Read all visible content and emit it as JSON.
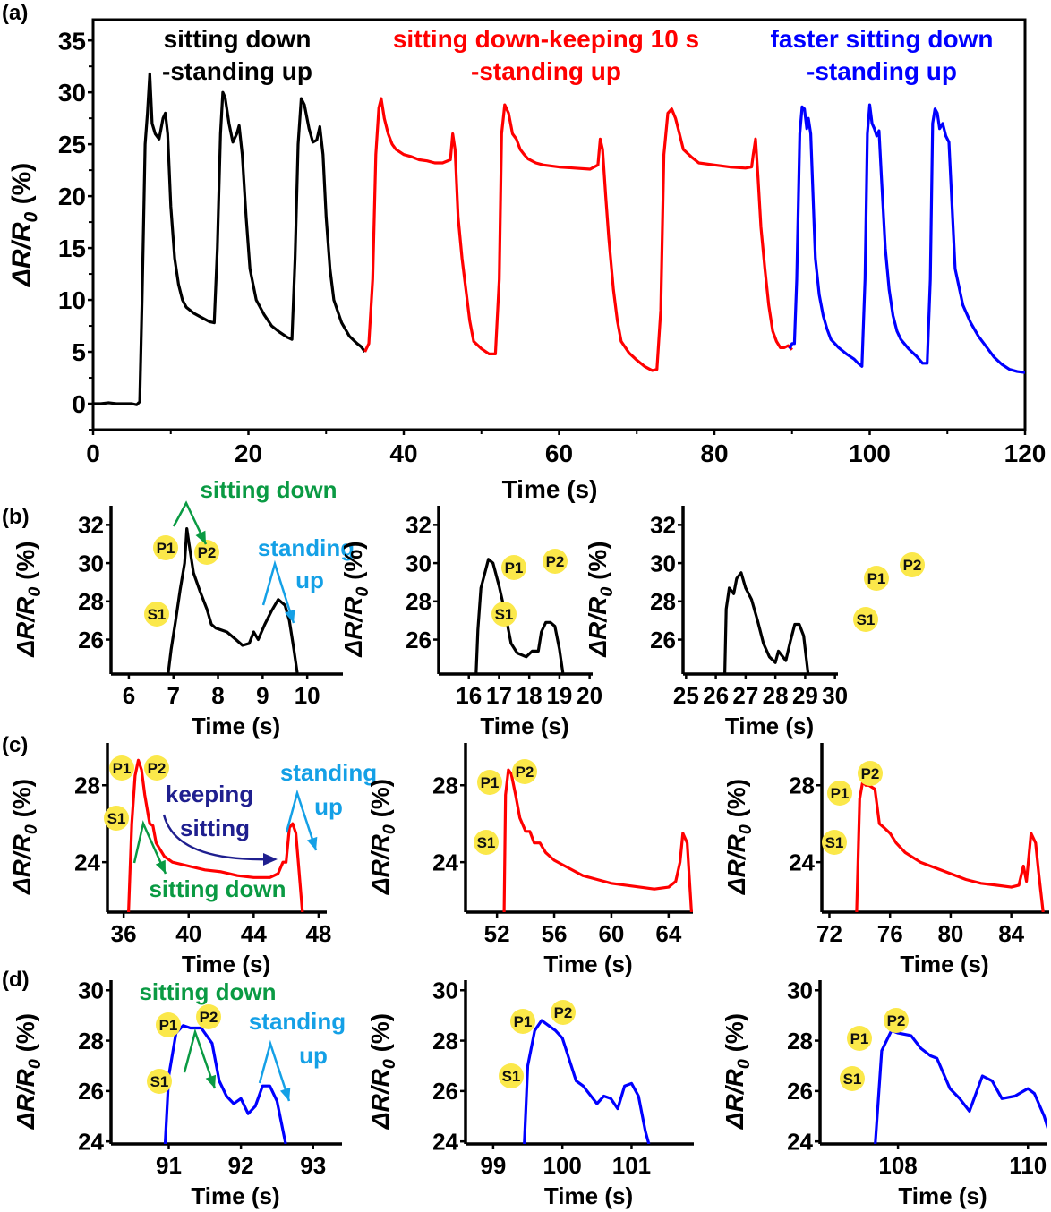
{
  "figure": {
    "panel_labels": [
      "(a)",
      "(b)",
      "(c)",
      "(d)"
    ],
    "colors": {
      "black": "#000000",
      "red": "#ff0000",
      "blue": "#0000ff",
      "green": "#0a9a43",
      "light_blue": "#14a0e6",
      "navy": "#1f1f8f",
      "marker_yellow": "#fbe84a"
    }
  },
  "chart_data": [
    {
      "id": "a",
      "type": "line",
      "title": "",
      "xlabel": "Time (s)",
      "ylabel": "ΔR/R0 (%)",
      "xlim": [
        0,
        120
      ],
      "ylim": [
        -2.5,
        37
      ],
      "xticks": [
        0,
        20,
        40,
        60,
        80,
        100,
        120
      ],
      "yticks": [
        0,
        5,
        10,
        15,
        20,
        25,
        30,
        35
      ],
      "annotations": [
        {
          "text": [
            "sitting down",
            "-standing up"
          ],
          "color": "black"
        },
        {
          "text": [
            "sitting down-keeping 10 s",
            "-standing up"
          ],
          "color": "red"
        },
        {
          "text": [
            "faster sitting down",
            "-standing up"
          ],
          "color": "blue"
        }
      ],
      "series": [
        {
          "name": "sitting down-standing up",
          "color": "black",
          "x": [
            0,
            1,
            2,
            3,
            4,
            5,
            5.6,
            6,
            6.3,
            6.7,
            7,
            7.3,
            7.6,
            8,
            8.5,
            9,
            9.3,
            9.6,
            10,
            10.5,
            11,
            11.5,
            12,
            13,
            14,
            15,
            15.6,
            16,
            16.4,
            16.7,
            17,
            17.5,
            18,
            18.5,
            18.8,
            19.2,
            19.7,
            20.2,
            21,
            22,
            23,
            24,
            25,
            25.6,
            26,
            26.4,
            26.8,
            27.2,
            27.8,
            28.3,
            28.8,
            29.2,
            29.6,
            30,
            30.5,
            31,
            32,
            33,
            34,
            34.5,
            35
          ],
          "y": [
            0,
            0,
            0.1,
            0,
            0,
            0,
            -0.1,
            0.2,
            10,
            25,
            28,
            31.8,
            27,
            26,
            25.5,
            27.5,
            28,
            26,
            19,
            14,
            11.5,
            10,
            9.3,
            8.7,
            8.3,
            7.9,
            7.8,
            15,
            26,
            30,
            29.5,
            27,
            25.2,
            26,
            26.8,
            24,
            18,
            13,
            10,
            8.6,
            7.5,
            6.9,
            6.4,
            6.2,
            14,
            25,
            29.4,
            28.8,
            26.5,
            25.2,
            25.4,
            26.7,
            24,
            18,
            13,
            10,
            7.8,
            6.5,
            5.8,
            5.5,
            5
          ]
        },
        {
          "name": "sitting down-keeping 10 s-standing up",
          "color": "red",
          "x": [
            35,
            35.5,
            36,
            36.4,
            36.8,
            37.1,
            37.5,
            38,
            38.5,
            39,
            40,
            41,
            42,
            43,
            44,
            45,
            46,
            46.3,
            46.6,
            47,
            47.5,
            48,
            48.5,
            49,
            50,
            51,
            51.8,
            52.3,
            52.6,
            53,
            53.5,
            54,
            54.5,
            55,
            55.5,
            56,
            57,
            58,
            60,
            62,
            64,
            65,
            65.3,
            65.6,
            66,
            66.4,
            67,
            67.5,
            68,
            69,
            70,
            71,
            72,
            72.6,
            73.1,
            73.5,
            74,
            74.5,
            75,
            75.5,
            76,
            77,
            78,
            80,
            82,
            84,
            84.8,
            85,
            85.3,
            85.6,
            86,
            86.5,
            87,
            87.5,
            88,
            88.5,
            89,
            89.5,
            90
          ],
          "y": [
            5,
            5.8,
            12,
            24,
            28.5,
            29.4,
            27.5,
            26,
            25,
            24.5,
            24,
            23.8,
            23.5,
            23.4,
            23.2,
            23.2,
            23.5,
            26,
            24.5,
            18,
            14,
            11,
            8,
            6,
            5.3,
            4.8,
            4.8,
            12,
            26,
            28.8,
            28,
            26,
            25.5,
            24.5,
            24,
            23.6,
            23.2,
            23,
            22.8,
            22.7,
            22.6,
            23,
            25.5,
            24.5,
            20,
            16,
            11,
            8,
            6,
            4.9,
            4.2,
            3.6,
            3.2,
            3.3,
            9,
            24,
            28,
            28.4,
            27.5,
            26,
            24.5,
            23.8,
            23.2,
            23,
            22.8,
            22.7,
            22.8,
            24,
            25.5,
            22,
            17,
            13,
            9.5,
            7,
            6,
            5.4,
            5.4,
            5.6,
            5.2
          ]
        },
        {
          "name": "faster sitting down-standing up",
          "color": "blue",
          "x": [
            89.7,
            90,
            90.3,
            90.6,
            91,
            91.3,
            91.6,
            91.9,
            92.1,
            92.4,
            92.7,
            93,
            93.5,
            94,
            94.5,
            95,
            96,
            97,
            98,
            98.5,
            99,
            99.4,
            99.7,
            100,
            100.3,
            100.6,
            100.9,
            101.2,
            101.5,
            102,
            102.5,
            103,
            103.5,
            104,
            105,
            106,
            106.8,
            107.4,
            107.8,
            108.1,
            108.4,
            108.7,
            109,
            109.4,
            109.8,
            110.2,
            110.6,
            111,
            112,
            113,
            114,
            115,
            116,
            117,
            118,
            119,
            120
          ],
          "y": [
            5.3,
            5.8,
            5.8,
            12,
            26,
            28.6,
            28.4,
            26.5,
            27.5,
            26,
            20,
            14,
            10.5,
            8.5,
            7.2,
            6.2,
            5.4,
            4.8,
            4.3,
            3.9,
            3.6,
            12,
            26,
            28.8,
            27,
            26.5,
            25.8,
            26.3,
            22,
            15,
            11,
            8.5,
            7,
            6.2,
            5.3,
            4.6,
            3.9,
            3.9,
            12,
            27,
            28.4,
            28,
            26.5,
            27,
            25.8,
            25.2,
            19,
            13,
            9.5,
            7.8,
            6.5,
            5.5,
            4.5,
            3.8,
            3.3,
            3.1,
            3
          ]
        }
      ]
    },
    {
      "id": "b1",
      "type": "line",
      "color": "black",
      "xlabel": "Time (s)",
      "ylabel": "ΔR/R0 (%)",
      "xlim": [
        5.6,
        10.8
      ],
      "ylim": [
        24.2,
        33
      ],
      "xticks": [
        6,
        7,
        8,
        9,
        10
      ],
      "yticks": [
        26,
        28,
        30,
        32
      ],
      "x": [
        6.88,
        6.95,
        7.05,
        7.15,
        7.25,
        7.3,
        7.35,
        7.45,
        7.6,
        7.75,
        7.85,
        7.95,
        8.2,
        8.4,
        8.55,
        8.7,
        8.8,
        8.9,
        9.05,
        9.2,
        9.35,
        9.5,
        9.6,
        9.7,
        9.78
      ],
      "y": [
        24.2,
        25.5,
        27,
        28.6,
        30,
        31.8,
        31,
        29.5,
        28.5,
        27.6,
        26.8,
        26.6,
        26.4,
        26,
        25.7,
        25.8,
        26.4,
        26,
        26.8,
        27.5,
        28.1,
        27.8,
        27,
        25.5,
        24.2
      ],
      "markers": [
        "S1",
        "P1",
        "P2"
      ],
      "annotations": [
        {
          "text": "sitting down",
          "color": "green"
        },
        {
          "text": [
            "standing",
            "up"
          ],
          "color": "light_blue"
        }
      ]
    },
    {
      "id": "b2",
      "type": "line",
      "color": "black",
      "xlabel": "Time (s)",
      "ylabel": "ΔR/R0 (%)",
      "xlim": [
        15,
        20.1
      ],
      "ylim": [
        24.2,
        33
      ],
      "xticks": [
        16,
        17,
        18,
        19,
        20
      ],
      "yticks": [
        26,
        28,
        30,
        32
      ],
      "x": [
        16.24,
        16.3,
        16.4,
        16.5,
        16.65,
        16.8,
        17,
        17.2,
        17.4,
        17.6,
        17.9,
        18.1,
        18.3,
        18.4,
        18.55,
        18.7,
        18.85,
        19,
        19.12
      ],
      "y": [
        24.2,
        26.5,
        28.7,
        29.3,
        30.2,
        30,
        28.8,
        27.4,
        25.8,
        25.3,
        25.1,
        25.4,
        25.4,
        26.4,
        26.9,
        26.9,
        26.7,
        25.5,
        24.2
      ],
      "markers": [
        "S1",
        "P1",
        "P2"
      ]
    },
    {
      "id": "b3",
      "type": "line",
      "color": "black",
      "xlabel": "Time (s)",
      "ylabel": "ΔR/R0 (%)",
      "xlim": [
        24.9,
        30.1
      ],
      "ylim": [
        24.2,
        33
      ],
      "xticks": [
        25,
        26,
        27,
        28,
        29,
        30
      ],
      "yticks": [
        26,
        28,
        30,
        32
      ],
      "x": [
        26.3,
        26.35,
        26.45,
        26.6,
        26.7,
        26.85,
        27,
        27.2,
        27.4,
        27.6,
        27.8,
        28,
        28.1,
        28.2,
        28.35,
        28.5,
        28.65,
        28.8,
        28.95,
        29.1
      ],
      "y": [
        24.2,
        27.6,
        28.7,
        28.4,
        29.2,
        29.5,
        28.7,
        28.1,
        27,
        25.8,
        25.1,
        24.8,
        25.4,
        25.2,
        24.9,
        25.9,
        26.8,
        26.8,
        26.2,
        24.2
      ],
      "markers": [
        "S1",
        "P1",
        "P2"
      ]
    },
    {
      "id": "c1",
      "type": "line",
      "color": "red",
      "xlabel": "Time (s)",
      "ylabel": "ΔR/R0 (%)",
      "xlim": [
        35,
        48.5
      ],
      "ylim": [
        21.4,
        30.2
      ],
      "xticks": [
        36,
        40,
        44,
        48
      ],
      "yticks": [
        24,
        28
      ],
      "x": [
        36.3,
        36.5,
        36.7,
        36.9,
        37.1,
        37.3,
        37.6,
        37.8,
        38,
        38.5,
        39,
        40,
        41,
        42,
        43,
        44,
        45,
        45.5,
        45.8,
        46,
        46.2,
        46.4,
        46.6,
        46.8,
        47
      ],
      "y": [
        21.4,
        26,
        28.5,
        29.3,
        28.8,
        27.5,
        26,
        25.9,
        25,
        24.3,
        24,
        23.8,
        23.6,
        23.5,
        23.3,
        23.2,
        23.2,
        23.4,
        24,
        24,
        25.8,
        26,
        25.5,
        23.5,
        21.4
      ],
      "markers": [
        "S1",
        "P1",
        "P2"
      ],
      "annotations": [
        {
          "text": [
            "keeping",
            "sitting"
          ],
          "color": "navy"
        },
        {
          "text": "sitting down",
          "color": "green"
        },
        {
          "text": [
            "standing",
            "up"
          ],
          "color": "light_blue"
        }
      ]
    },
    {
      "id": "c2",
      "type": "line",
      "color": "red",
      "xlabel": "Time (s)",
      "ylabel": "ΔR/R0 (%)",
      "xlim": [
        49.8,
        65.7
      ],
      "ylim": [
        21.4,
        30.2
      ],
      "xticks": [
        52,
        56,
        60,
        64
      ],
      "yticks": [
        24,
        28
      ],
      "x": [
        52.5,
        52.6,
        52.8,
        53,
        53.3,
        53.6,
        54,
        54.3,
        54.6,
        55,
        55.4,
        56,
        57,
        58,
        59,
        60,
        61,
        62,
        63,
        64,
        64.5,
        64.8,
        65,
        65.3,
        65.6
      ],
      "y": [
        21.4,
        27.5,
        28.8,
        28.6,
        27.5,
        26.3,
        25.6,
        25.6,
        25,
        25,
        24.5,
        24.1,
        23.7,
        23.3,
        23.1,
        22.9,
        22.8,
        22.7,
        22.6,
        22.7,
        23,
        24,
        25.5,
        25,
        21.4
      ],
      "markers": [
        "S1",
        "P1",
        "P2"
      ]
    },
    {
      "id": "c3",
      "type": "line",
      "color": "red",
      "xlabel": "Time (s)",
      "ylabel": "ΔR/R0 (%)",
      "xlim": [
        71.5,
        86.5
      ],
      "ylim": [
        21.4,
        30.2
      ],
      "xticks": [
        72,
        76,
        80,
        84
      ],
      "yticks": [
        24,
        28
      ],
      "x": [
        73.8,
        74,
        74.2,
        74.4,
        74.6,
        75,
        75.3,
        75.6,
        76,
        76.4,
        77,
        78,
        79,
        80,
        81,
        82,
        83,
        84,
        84.5,
        84.8,
        85,
        85.3,
        85.6,
        85.8,
        86.1
      ],
      "y": [
        21.4,
        27.3,
        28.2,
        28,
        28,
        27.8,
        26,
        25.8,
        25.5,
        25,
        24.5,
        24,
        23.7,
        23.4,
        23.1,
        22.9,
        22.8,
        22.7,
        22.8,
        23.8,
        23,
        25.5,
        25,
        23.5,
        21.4
      ],
      "markers": [
        "S1",
        "P1",
        "P2"
      ]
    },
    {
      "id": "d1",
      "type": "line",
      "color": "blue",
      "xlabel": "Time (s)",
      "ylabel": "ΔR/R0 (%)",
      "xlim": [
        90.2,
        93.4
      ],
      "ylim": [
        23.9,
        30.4
      ],
      "xticks": [
        91,
        92,
        93
      ],
      "yticks": [
        24,
        26,
        28,
        30
      ],
      "x": [
        90.95,
        91,
        91.1,
        91.2,
        91.3,
        91.45,
        91.6,
        91.7,
        91.8,
        91.9,
        92,
        92.1,
        92.2,
        92.3,
        92.4,
        92.5,
        92.62
      ],
      "y": [
        23.9,
        26.6,
        28.3,
        28.6,
        28.5,
        28.5,
        27.9,
        26.4,
        25.8,
        25.5,
        25.7,
        25.1,
        25.4,
        26.2,
        26.2,
        25.6,
        23.9
      ],
      "markers": [
        "S1",
        "P1",
        "P2"
      ],
      "annotations": [
        {
          "text": "sitting down",
          "color": "green"
        },
        {
          "text": [
            "standing",
            "up"
          ],
          "color": "light_blue"
        }
      ]
    },
    {
      "id": "d2",
      "type": "line",
      "color": "blue",
      "xlabel": "Time (s)",
      "ylabel": "ΔR/R0 (%)",
      "xlim": [
        98.6,
        101.9
      ],
      "ylim": [
        23.9,
        30.4
      ],
      "xticks": [
        99,
        100,
        101
      ],
      "yticks": [
        24,
        26,
        28,
        30
      ],
      "x": [
        99.45,
        99.5,
        99.6,
        99.7,
        99.8,
        99.9,
        100,
        100.2,
        100.3,
        100.5,
        100.6,
        100.7,
        100.8,
        100.9,
        101,
        101.1,
        101.2,
        101.25
      ],
      "y": [
        23.9,
        27,
        28.4,
        28.8,
        28.6,
        28.4,
        28.1,
        26.4,
        26.2,
        25.5,
        25.8,
        25.7,
        25.3,
        26.2,
        26.3,
        25.8,
        24.4,
        23.9
      ],
      "markers": [
        "S1",
        "P1",
        "P2"
      ]
    },
    {
      "id": "d3",
      "type": "line",
      "color": "blue",
      "xlabel": "Time (s)",
      "ylabel": "ΔR/R0 (%)",
      "xlim": [
        106.8,
        110.3
      ],
      "ylim": [
        23.9,
        30.4
      ],
      "xticks": [
        108,
        110
      ],
      "yticks": [
        24,
        26,
        28,
        30
      ],
      "x": [
        107.65,
        107.75,
        107.9,
        108,
        108.2,
        108.35,
        108.5,
        108.6,
        108.8,
        108.95,
        109.1,
        109.3,
        109.45,
        109.6,
        109.8,
        110,
        110.1,
        110.25,
        110.38
      ],
      "y": [
        23.9,
        27.6,
        28.4,
        28.3,
        28.2,
        27.7,
        27.4,
        27.3,
        26.1,
        25.7,
        25.2,
        26.6,
        26.4,
        25.7,
        25.8,
        26.1,
        25.9,
        25,
        23.9
      ],
      "markers": [
        "S1",
        "P1",
        "P2"
      ]
    }
  ]
}
